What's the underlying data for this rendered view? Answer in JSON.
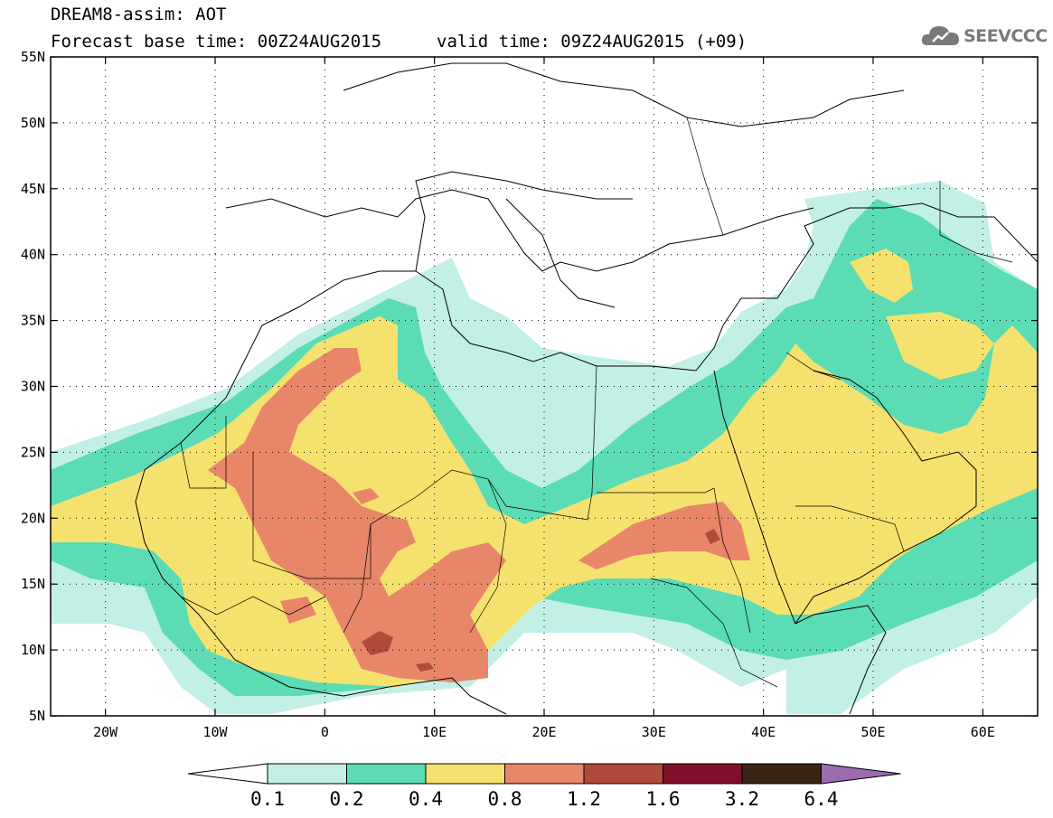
{
  "title": {
    "line1": "DREAM8-assim: AOT",
    "line2": "Forecast base time: 00Z24AUG2015",
    "valid": "valid time: 09Z24AUG2015 (+09)"
  },
  "logo": {
    "text": "SEEVCCC",
    "icon": "cloud-icon"
  },
  "map": {
    "lon_range": [
      -25,
      65
    ],
    "lat_range": [
      5,
      55
    ],
    "lon_ticks": [
      {
        "value": -20,
        "label": "20W"
      },
      {
        "value": -10,
        "label": "10W"
      },
      {
        "value": 0,
        "label": "0"
      },
      {
        "value": 10,
        "label": "10E"
      },
      {
        "value": 20,
        "label": "20E"
      },
      {
        "value": 30,
        "label": "30E"
      },
      {
        "value": 40,
        "label": "40E"
      },
      {
        "value": 50,
        "label": "50E"
      },
      {
        "value": 60,
        "label": "60E"
      }
    ],
    "lat_ticks": [
      {
        "value": 5,
        "label": "5N"
      },
      {
        "value": 10,
        "label": "10N"
      },
      {
        "value": 15,
        "label": "15N"
      },
      {
        "value": 20,
        "label": "20N"
      },
      {
        "value": 25,
        "label": "25N"
      },
      {
        "value": 30,
        "label": "30N"
      },
      {
        "value": 35,
        "label": "35N"
      },
      {
        "value": 40,
        "label": "40N"
      },
      {
        "value": 45,
        "label": "45N"
      },
      {
        "value": 50,
        "label": "50N"
      },
      {
        "value": 55,
        "label": "55N"
      }
    ],
    "grid": "dotted"
  },
  "colorbar": {
    "labels": [
      "0.1",
      "0.2",
      "0.4",
      "0.8",
      "1.2",
      "1.6",
      "3.2",
      "6.4"
    ],
    "colors": [
      "#ffffff",
      "#c2efe6",
      "#5bdcb4",
      "#f5e26e",
      "#e8866a",
      "#b04a3a",
      "#80102a",
      "#3a2416",
      "#9b6cb0"
    ]
  }
}
